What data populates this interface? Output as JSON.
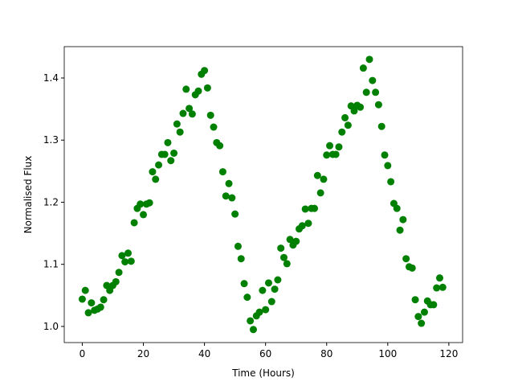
{
  "chart_data": {
    "type": "scatter",
    "xlabel": "Time (Hours)",
    "ylabel": "Normalised Flux",
    "color": "#008000",
    "x": [
      0,
      1,
      2,
      3,
      4,
      5,
      6,
      7,
      8,
      9,
      10,
      11,
      12,
      13,
      14,
      15,
      16,
      17,
      18,
      19,
      20,
      21,
      22,
      23,
      24,
      25,
      26,
      27,
      28,
      29,
      30,
      31,
      32,
      33,
      34,
      35,
      36,
      37,
      38,
      39,
      40,
      41,
      42,
      43,
      44,
      45,
      46,
      47,
      48,
      49,
      50,
      51,
      52,
      53,
      54,
      55,
      56,
      57,
      58,
      59,
      60,
      61,
      62,
      63,
      64,
      65,
      66,
      67,
      68,
      69,
      70,
      71,
      72,
      73,
      74,
      75,
      76,
      77,
      78,
      79,
      80,
      81,
      82,
      83,
      84,
      85,
      86,
      87,
      88,
      89,
      90,
      91,
      92,
      93,
      94,
      95,
      96,
      97,
      98,
      99,
      100,
      101,
      102,
      103,
      104,
      105,
      106,
      107,
      108,
      109,
      110,
      111,
      112,
      113,
      114,
      115,
      116,
      117,
      118
    ],
    "values": [
      1.044,
      1.058,
      1.022,
      1.038,
      1.026,
      1.028,
      1.031,
      1.043,
      1.066,
      1.058,
      1.066,
      1.072,
      1.087,
      1.114,
      1.104,
      1.118,
      1.105,
      1.167,
      1.19,
      1.197,
      1.18,
      1.197,
      1.199,
      1.249,
      1.237,
      1.26,
      1.277,
      1.277,
      1.296,
      1.267,
      1.279,
      1.326,
      1.313,
      1.343,
      1.382,
      1.351,
      1.342,
      1.373,
      1.379,
      1.406,
      1.412,
      1.384,
      1.34,
      1.321,
      1.296,
      1.291,
      1.249,
      1.21,
      1.23,
      1.207,
      1.181,
      1.129,
      1.109,
      1.069,
      1.047,
      1.009,
      0.995,
      1.017,
      1.023,
      1.058,
      1.027,
      1.07,
      1.04,
      1.06,
      1.075,
      1.126,
      1.111,
      1.101,
      1.14,
      1.131,
      1.137,
      1.157,
      1.162,
      1.189,
      1.166,
      1.19,
      1.19,
      1.243,
      1.215,
      1.237,
      1.276,
      1.291,
      1.277,
      1.277,
      1.289,
      1.313,
      1.336,
      1.324,
      1.355,
      1.347,
      1.356,
      1.353,
      1.416,
      1.377,
      1.43,
      1.396,
      1.377,
      1.357,
      1.322,
      1.276,
      1.259,
      1.233,
      1.198,
      1.19,
      1.155,
      1.172,
      1.109,
      1.096,
      1.094,
      1.043,
      1.016,
      1.005,
      1.023,
      1.041,
      1.035,
      1.035,
      1.062,
      1.078,
      1.063
    ],
    "xlim": [
      -5.9,
      124.5
    ],
    "ylim": [
      0.974,
      1.4505
    ],
    "xticks": [
      0,
      20,
      40,
      60,
      80,
      100,
      120
    ],
    "yticks": [
      {
        "value": 1,
        "label": "1.0"
      },
      1.1,
      1.2,
      1.3,
      1.4
    ]
  }
}
